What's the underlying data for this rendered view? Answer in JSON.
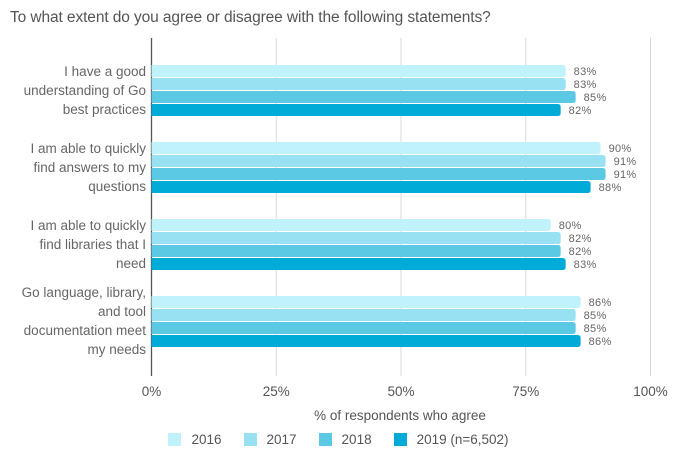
{
  "chart_data": {
    "type": "bar",
    "orientation": "horizontal",
    "title": "To what extent do you agree or disagree with the following statements?",
    "xlabel": "% of respondents who agree",
    "ylabel": "",
    "xlim": [
      0,
      100
    ],
    "x_ticks": [
      0,
      25,
      50,
      75,
      100
    ],
    "x_tick_labels": [
      "0%",
      "25%",
      "50%",
      "75%",
      "100%"
    ],
    "grid": true,
    "legend_position": "bottom",
    "categories": [
      "I have a good understanding of Go best practices",
      "I am able to quickly find answers to my questions",
      "I am able to quickly find libraries that I need",
      "Go language, library, and tool documentation meet my needs"
    ],
    "category_lines": [
      [
        "I have a good",
        "understanding of Go",
        "best practices"
      ],
      [
        "I am able to quickly",
        "find answers to my",
        "questions"
      ],
      [
        "I am able to quickly",
        "find libraries that I",
        "need"
      ],
      [
        "Go language, library,",
        "and tool",
        "documentation meet",
        "my needs"
      ]
    ],
    "series": [
      {
        "name": "2016",
        "color": "#C0F2FC",
        "values": [
          83,
          90,
          80,
          86
        ],
        "labels": [
          "83%",
          "90%",
          "80%",
          "86%"
        ]
      },
      {
        "name": "2017",
        "color": "#97E1F3",
        "values": [
          83,
          91,
          82,
          85
        ],
        "labels": [
          "83%",
          "91%",
          "82%",
          "85%"
        ]
      },
      {
        "name": "2018",
        "color": "#5BC9E3",
        "values": [
          85,
          91,
          82,
          85
        ],
        "labels": [
          "85%",
          "91%",
          "82%",
          "85%"
        ]
      },
      {
        "name": "2019 (n=6,502)",
        "color": "#00ACD7",
        "values": [
          82,
          88,
          83,
          86
        ],
        "labels": [
          "82%",
          "88%",
          "83%",
          "86%"
        ]
      }
    ]
  }
}
